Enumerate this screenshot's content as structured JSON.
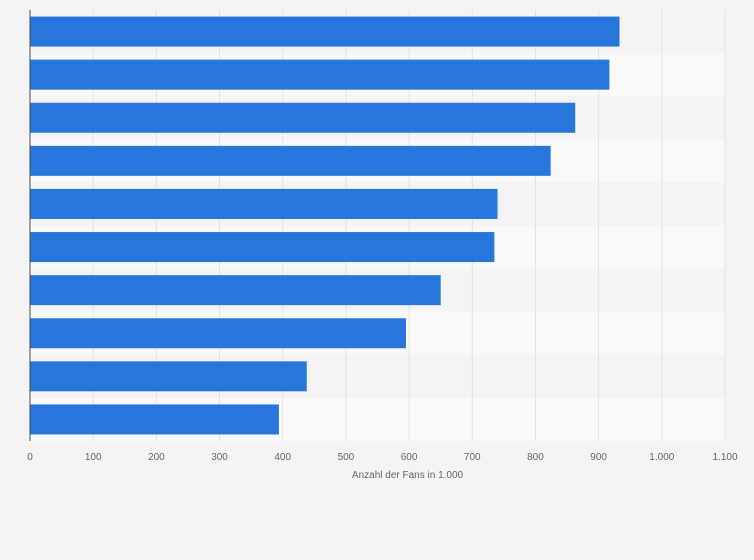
{
  "chart_data": {
    "type": "bar",
    "orientation": "horizontal",
    "categories": [
      "",
      "",
      "",
      "",
      "",
      "",
      "",
      "",
      "",
      ""
    ],
    "values": [
      933,
      917,
      863,
      824,
      740,
      735,
      650,
      595,
      438,
      394
    ],
    "xlabel": "Anzahl der Fans in 1.000",
    "ylabel": "",
    "xlim": [
      0,
      1100
    ],
    "x_ticks": [
      0,
      100,
      200,
      300,
      400,
      500,
      600,
      700,
      800,
      900,
      1000,
      1100
    ],
    "x_tick_labels": [
      "0",
      "100",
      "200",
      "300",
      "400",
      "500",
      "600",
      "700",
      "800",
      "900",
      "1.000",
      "1.100"
    ],
    "grid": true,
    "bar_color": "#2776dc",
    "band_colors": [
      "#f4f4f4",
      "#f9f9f9"
    ],
    "gridline_color": "#e2e2e2",
    "axis_line_color": "#4a4a4a"
  }
}
